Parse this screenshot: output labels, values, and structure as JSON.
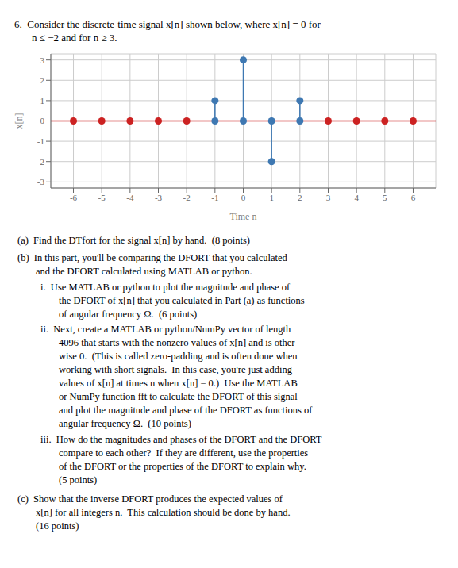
{
  "chart_data": {
    "type": "stem",
    "title": "6.  Consider the discrete-time signal x[n] shown below, where x[n] = 0 for",
    "subtitle": "n ≤ −2 and for n ≥ 3.",
    "xlabel": "Time n",
    "ylabel": "x[n]",
    "series": [
      {
        "x": [
          -1,
          0,
          1,
          2
        ],
        "values": [
          1,
          3,
          -2,
          1
        ],
        "color": "#3e78b2"
      },
      {
        "x": [
          -6,
          -5,
          -4,
          -3,
          -2,
          3,
          4,
          5,
          6
        ],
        "values": [
          0,
          0,
          0,
          0,
          0,
          0,
          0,
          0,
          0
        ],
        "color": "#cc2222"
      }
    ],
    "xlim": [
      -6.8,
      6.8
    ],
    "ylim": [
      -3.3,
      3.3
    ],
    "xticks": [
      -6,
      -5,
      -4,
      -3,
      -2,
      -1,
      0,
      1,
      2,
      3,
      4,
      5,
      6
    ],
    "yticks": [
      -3,
      -2,
      -1,
      0,
      1,
      2,
      3
    ],
    "grid": true,
    "annotations": [
      "(a)  Find the DTfort for the signal x[n] by hand.  (8 points)",
      "(b)  In this part, you'll be comparing the DFORT that you calculated",
      "and the DFORT calculated using MATLAB or python.",
      "i.  Use MATLAB or python to plot the magnitude and phase of",
      "the DFORT of x[n] that you calculated in Part (a) as functions",
      "of angular frequency Ω.  (6 points)",
      "ii.  Next, create a MATLAB or python/NumPy vector of length",
      "4096 that starts with the nonzero values of x[n] and is other-",
      "wise 0.  (This is called zero-padding and is often done when",
      "working with short signals.  In this case, you're just adding",
      "values of x[n] at times n when x[n] = 0.)  Use the MATLAB",
      "or NumPy function fft to calculate the DFORT of this signal",
      "and plot the magnitude and phase of the DFORT as functions of",
      "angular frequency Ω.  (10 points)",
      "iii.  How do the magnitudes and phases of the DFORT and the DFORT",
      "compare to each other?  If they are different, use the properties",
      "of the DFORT or the properties of the DFORT to explain why.",
      "(5 points)",
      "(c)  Show that the inverse DFORT produces the expected values of",
      "x[n] for all integers n.  This calculation should be done by hand.",
      "(16 points)"
    ]
  }
}
